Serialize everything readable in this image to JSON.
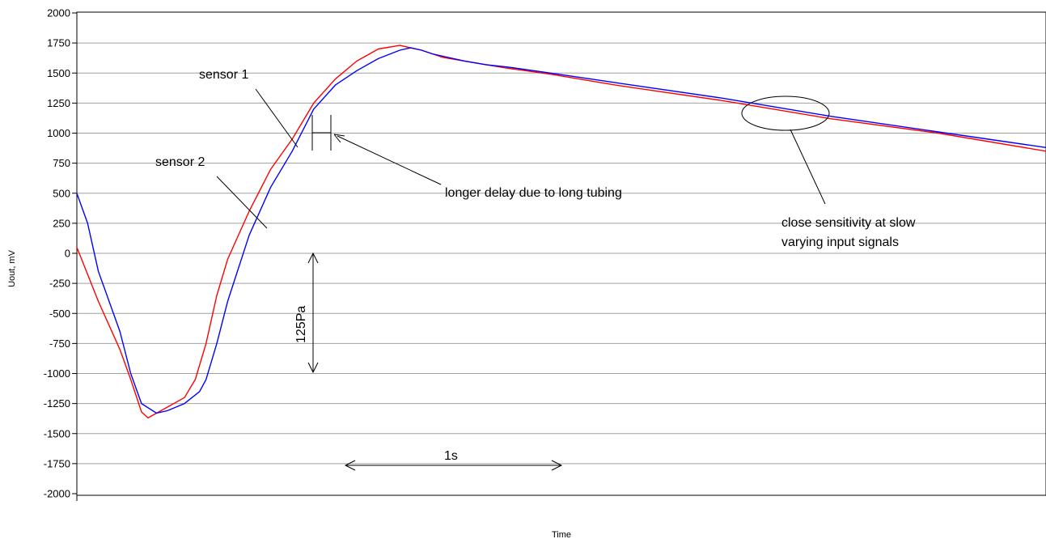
{
  "chart_data": {
    "type": "line",
    "xlabel": "Time",
    "ylabel": "Uout, mV",
    "ylim": [
      -2000,
      2000
    ],
    "y_ticks": [
      2000,
      1750,
      1500,
      1250,
      1000,
      750,
      500,
      250,
      0,
      -250,
      -500,
      -750,
      -1000,
      -1250,
      -1500,
      -1750,
      -2000
    ],
    "grid": "horizontal",
    "x_scale_note": "1s",
    "y_scale_note": "125Pa",
    "series": [
      {
        "name": "sensor 1",
        "color": "#ff0000",
        "x": [
          0.0,
          0.1,
          0.2,
          0.25,
          0.3,
          0.33,
          0.37,
          0.42,
          0.5,
          0.55,
          0.6,
          0.65,
          0.7,
          0.8,
          0.9,
          1.0,
          1.1,
          1.2,
          1.3,
          1.35,
          1.4,
          1.5,
          1.6,
          1.7,
          1.8,
          1.9,
          2.0,
          2.2,
          2.5,
          3.0,
          3.5,
          4.0,
          4.5
        ],
        "y": [
          50,
          -400,
          -800,
          -1050,
          -1320,
          -1370,
          -1330,
          -1280,
          -1200,
          -1050,
          -750,
          -350,
          -50,
          350,
          700,
          950,
          1250,
          1450,
          1600,
          1650,
          1700,
          1730,
          1690,
          1630,
          1600,
          1570,
          1540,
          1490,
          1400,
          1270,
          1120,
          1000,
          850
        ]
      },
      {
        "name": "sensor 2",
        "color": "#0000ff",
        "x": [
          0.0,
          0.05,
          0.1,
          0.2,
          0.25,
          0.3,
          0.37,
          0.42,
          0.5,
          0.57,
          0.6,
          0.65,
          0.7,
          0.8,
          0.9,
          1.0,
          1.1,
          1.2,
          1.3,
          1.4,
          1.5,
          1.55,
          1.6,
          1.65,
          1.7,
          1.8,
          1.9,
          2.0,
          2.2,
          2.5,
          3.0,
          3.5,
          4.0,
          4.5
        ],
        "y": [
          500,
          250,
          -150,
          -650,
          -1000,
          -1250,
          -1330,
          -1310,
          -1250,
          -1150,
          -1050,
          -750,
          -400,
          150,
          550,
          850,
          1200,
          1400,
          1520,
          1620,
          1690,
          1710,
          1690,
          1660,
          1640,
          1600,
          1570,
          1550,
          1500,
          1420,
          1290,
          1140,
          1010,
          880
        ]
      }
    ],
    "annotations": [
      "sensor 1",
      "sensor 2",
      "longer delay due to long tubing",
      "close sensitivity at slow",
      "varying input signals"
    ]
  }
}
